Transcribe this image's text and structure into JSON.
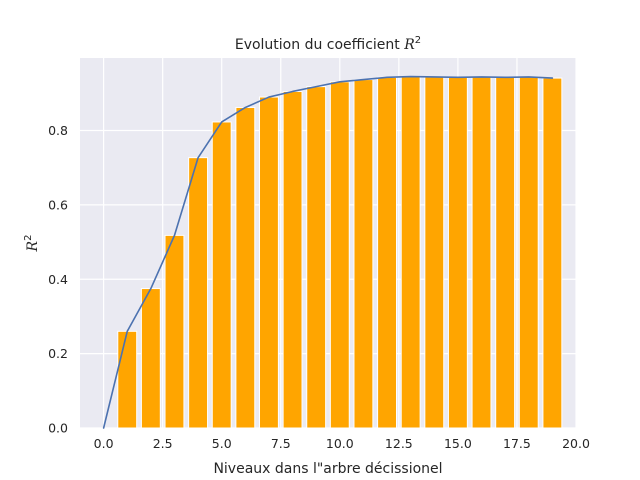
{
  "chart_data": {
    "type": "bar",
    "title": "Evolution du coefficient R²",
    "title_text": "Evolution du coefficient",
    "title_math_base": "R",
    "title_math_sup": "2",
    "xlabel": "Niveaux dans l\"arbre décissionel",
    "ylabel_base": "R",
    "ylabel_sup": "2",
    "xlim": [
      -1.0,
      20.0
    ],
    "ylim": [
      0.0,
      0.995
    ],
    "xticks": [
      0.0,
      2.5,
      5.0,
      7.5,
      10.0,
      12.5,
      15.0,
      17.5,
      20.0
    ],
    "xtick_labels": [
      "0.0",
      "2.5",
      "5.0",
      "7.5",
      "10.0",
      "12.5",
      "15.0",
      "17.5",
      "20.0"
    ],
    "yticks": [
      0.0,
      0.2,
      0.4,
      0.6,
      0.8
    ],
    "ytick_labels": [
      "0.0",
      "0.2",
      "0.4",
      "0.6",
      "0.8"
    ],
    "grid": true,
    "bar_color": "#ffa500",
    "line_color": "#4c72b0",
    "background_color": "#eaeaf2",
    "bars": {
      "x": [
        1,
        2,
        3,
        4,
        5,
        6,
        7,
        8,
        9,
        10,
        11,
        12,
        13,
        14,
        15,
        16,
        17,
        18,
        19
      ],
      "values": [
        0.26,
        0.375,
        0.518,
        0.727,
        0.823,
        0.862,
        0.89,
        0.905,
        0.918,
        0.931,
        0.937,
        0.943,
        0.945,
        0.944,
        0.943,
        0.944,
        0.943,
        0.944,
        0.941
      ]
    },
    "line": {
      "x": [
        0,
        1,
        2,
        3,
        4,
        5,
        6,
        7,
        8,
        9,
        10,
        11,
        12,
        13,
        14,
        15,
        16,
        17,
        18,
        19
      ],
      "values": [
        0.0,
        0.26,
        0.375,
        0.518,
        0.727,
        0.823,
        0.862,
        0.89,
        0.905,
        0.918,
        0.931,
        0.937,
        0.943,
        0.945,
        0.944,
        0.943,
        0.944,
        0.943,
        0.944,
        0.941
      ]
    }
  }
}
